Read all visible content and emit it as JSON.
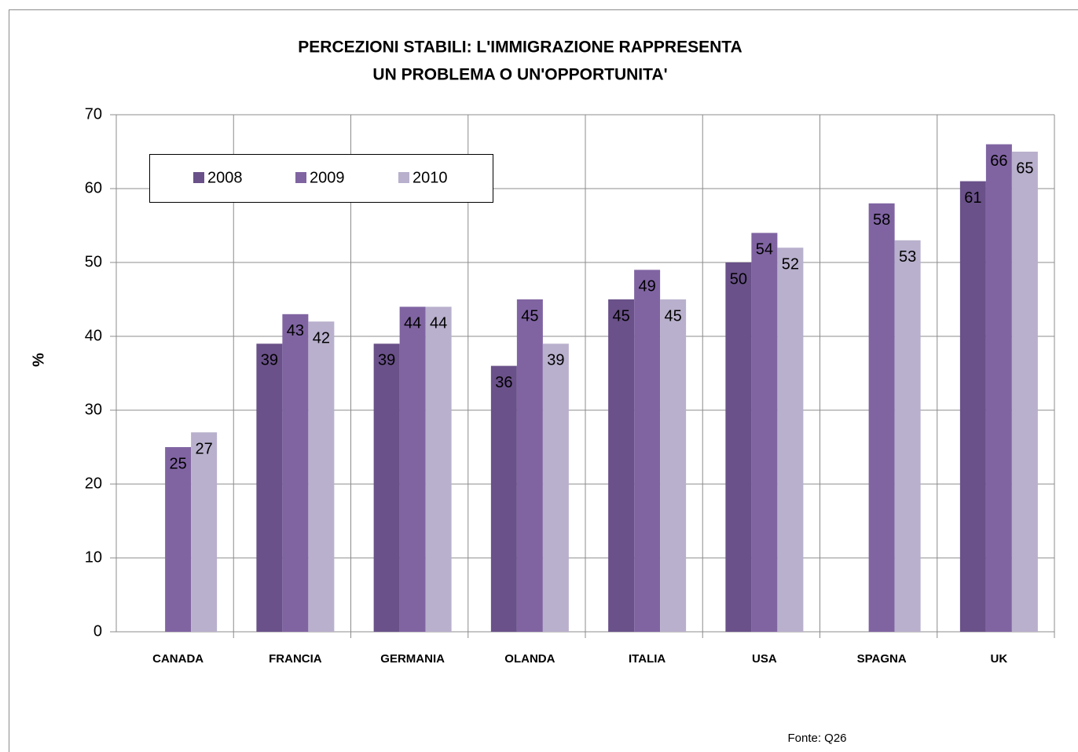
{
  "chart_data": {
    "type": "bar",
    "title": [
      "PERCEZIONI STABILI: L'IMMIGRAZIONE RAPPRESENTA",
      "UN PROBLEMA O UN'OPPORTUNITA'"
    ],
    "y_label": "%",
    "source": "Fonte: Q26",
    "categories": [
      "CANADA",
      "FRANCIA",
      "GERMANIA",
      "OLANDA",
      "ITALIA",
      "USA",
      "SPAGNA",
      "UK"
    ],
    "series": [
      {
        "name": "2008",
        "color": "#6a5189",
        "values": [
          null,
          39,
          39,
          36,
          45,
          50,
          null,
          61
        ]
      },
      {
        "name": "2009",
        "color": "#8064a2",
        "values": [
          25,
          43,
          44,
          45,
          49,
          54,
          58,
          66
        ]
      },
      {
        "name": "2010",
        "color": "#b9b0cd",
        "values": [
          27,
          42,
          44,
          39,
          45,
          52,
          53,
          65
        ]
      }
    ],
    "ylim": [
      0,
      70
    ],
    "yticks": [
      0,
      10,
      20,
      30,
      40,
      50,
      60,
      70
    ],
    "grid": true,
    "legend": "top-left"
  }
}
